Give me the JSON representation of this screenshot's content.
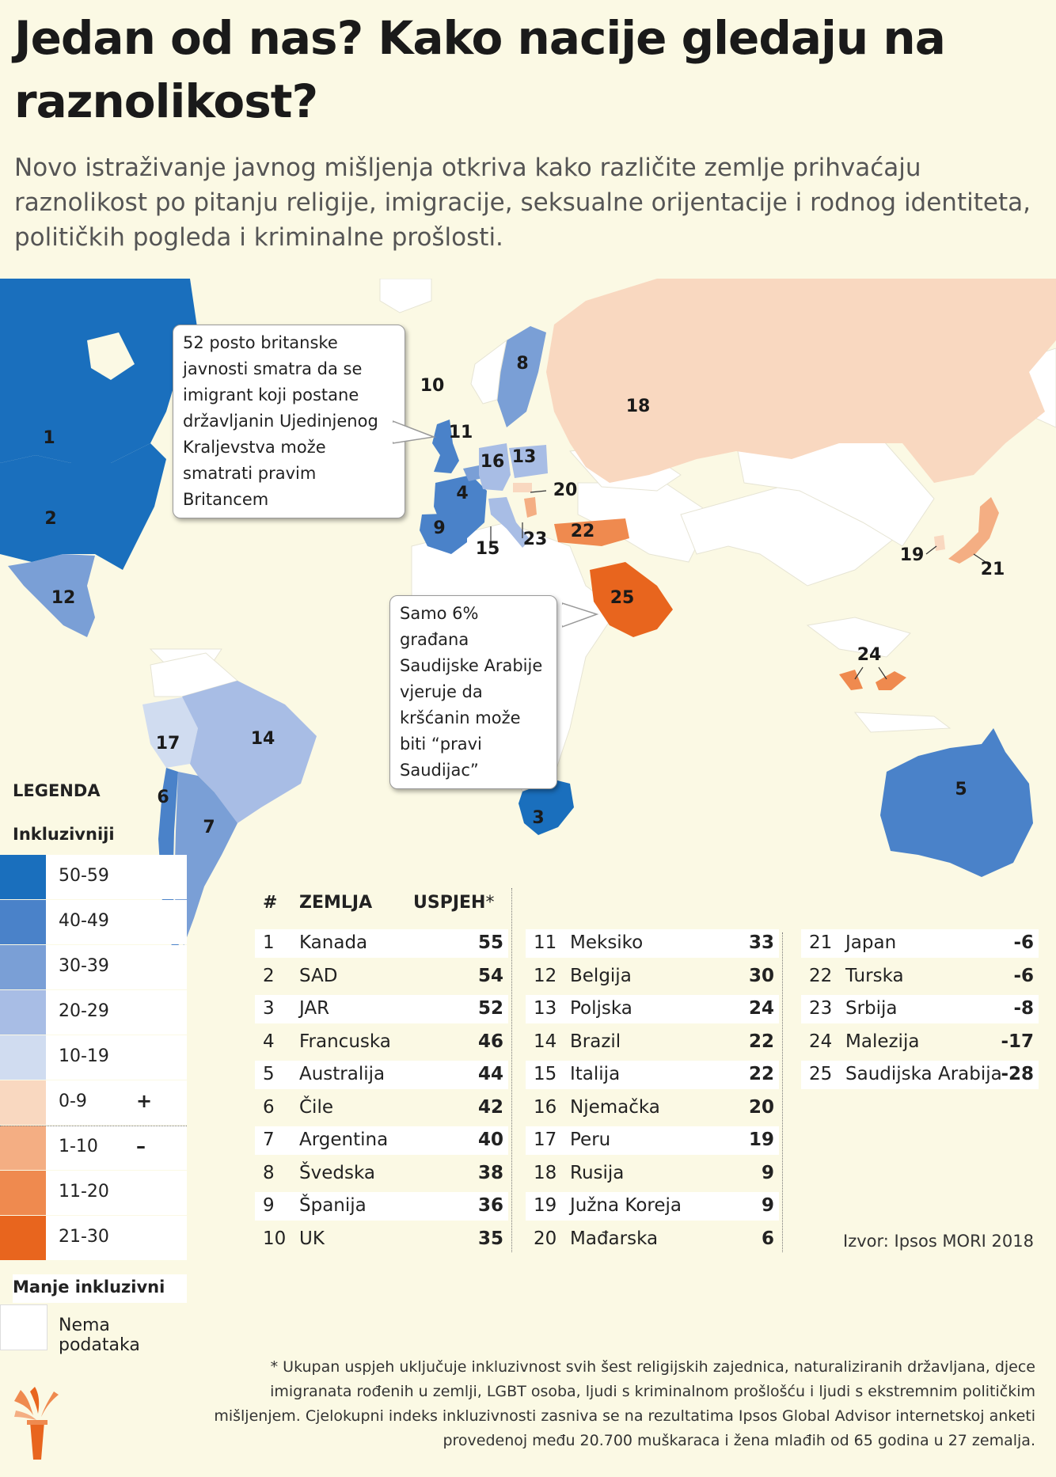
{
  "header": {
    "title": "Jedan od nas? Kako nacije gledaju na raznolikost?",
    "subtitle": "Novo istraživanje javnog mišljenja otkriva kako različite zemlje prihvaćaju raznolikost po pitanju religije, imigracije, seksualne orijentacije i rodnog identiteta, političkih pogleda i kriminalne prošlosti."
  },
  "colors": {
    "background": "#fbf9e4",
    "no_data": "#ffffff",
    "scale": [
      "#1a6fbd",
      "#4a82c9",
      "#7a9fd6",
      "#a8bde5",
      "#d0dcf0",
      "#f9d8c0",
      "#f4ae83",
      "#ef8a4f",
      "#e8651e"
    ]
  },
  "map_labels": [
    "1",
    "2",
    "3",
    "4",
    "5",
    "6",
    "7",
    "8",
    "9",
    "10",
    "11",
    "12",
    "13",
    "14",
    "15",
    "16",
    "17",
    "18",
    "19",
    "20",
    "21",
    "22",
    "23",
    "24",
    "25"
  ],
  "callouts": {
    "uk": "52 posto britanske javnosti smatra da se imigrant koji postane državljanin Ujedinjenog Kraljevstva može smatrati pravim Britancem",
    "saudi": "Samo 6% građana Saudijske Arabije vjeruje da kršćanin može biti “pravi Saudijac”"
  },
  "legend": {
    "title": "LEGENDA",
    "top_label": "Inkluzivniji",
    "bottom_label": "Manje inkluzivni",
    "items": [
      {
        "label": "50-59",
        "sign": ""
      },
      {
        "label": "40-49",
        "sign": ""
      },
      {
        "label": "30-39",
        "sign": ""
      },
      {
        "label": "20-29",
        "sign": ""
      },
      {
        "label": "10-19",
        "sign": ""
      },
      {
        "label": "0-9",
        "sign": "+"
      },
      {
        "label": "1-10",
        "sign": "–"
      },
      {
        "label": "11-20",
        "sign": ""
      },
      {
        "label": "21-30",
        "sign": ""
      }
    ],
    "no_data": "Nema podataka"
  },
  "table": {
    "headers": {
      "num": "#",
      "country": "ZEMLJA",
      "score": "USPJEH",
      "score_mark": "*"
    },
    "rows": [
      {
        "rank": "1",
        "country": "Kanada",
        "score": "55"
      },
      {
        "rank": "2",
        "country": "SAD",
        "score": "54"
      },
      {
        "rank": "3",
        "country": "JAR",
        "score": "52"
      },
      {
        "rank": "4",
        "country": "Francuska",
        "score": "46"
      },
      {
        "rank": "5",
        "country": "Australija",
        "score": "44"
      },
      {
        "rank": "6",
        "country": "Čile",
        "score": "42"
      },
      {
        "rank": "7",
        "country": "Argentina",
        "score": "40"
      },
      {
        "rank": "8",
        "country": "Švedska",
        "score": "38"
      },
      {
        "rank": "9",
        "country": "Španija",
        "score": "36"
      },
      {
        "rank": "10",
        "country": "UK",
        "score": "35"
      },
      {
        "rank": "11",
        "country": "Meksiko",
        "score": "33"
      },
      {
        "rank": "12",
        "country": "Belgija",
        "score": "30"
      },
      {
        "rank": "13",
        "country": "Poljska",
        "score": "24"
      },
      {
        "rank": "14",
        "country": "Brazil",
        "score": "22"
      },
      {
        "rank": "15",
        "country": "Italija",
        "score": "22"
      },
      {
        "rank": "16",
        "country": "Njemačka",
        "score": "20"
      },
      {
        "rank": "17",
        "country": "Peru",
        "score": "19"
      },
      {
        "rank": "18",
        "country": "Rusija",
        "score": "9"
      },
      {
        "rank": "19",
        "country": "Južna Koreja",
        "score": "9"
      },
      {
        "rank": "20",
        "country": "Mađarska",
        "score": "6"
      },
      {
        "rank": "21",
        "country": "Japan",
        "score": "-6"
      },
      {
        "rank": "22",
        "country": "Turska",
        "score": "-6"
      },
      {
        "rank": "23",
        "country": "Srbija",
        "score": "-8"
      },
      {
        "rank": "24",
        "country": "Malezija",
        "score": "-17"
      },
      {
        "rank": "25",
        "country": "Saudijska Arabija",
        "score": "-28"
      }
    ]
  },
  "source": "Izvor: Ipsos MORI 2018",
  "footnote": "* Ukupan uspjeh uključuje inkluzivnost svih šest religijskih zajednica, naturaliziranih državljana, djece imigranata rođenih u zemlji, LGBT osoba, ljudi s kriminalnom prošlošću i ljudi s ekstremnim političkim mišljenjem. Cjelokupni indeks inkluzivnosti zasniva se na rezultatima Ipsos Global Advisor internetskoj anketi provedenoj među 20.700 muškaraca i žena mlađih od 65 godina u 27 zemalja."
}
